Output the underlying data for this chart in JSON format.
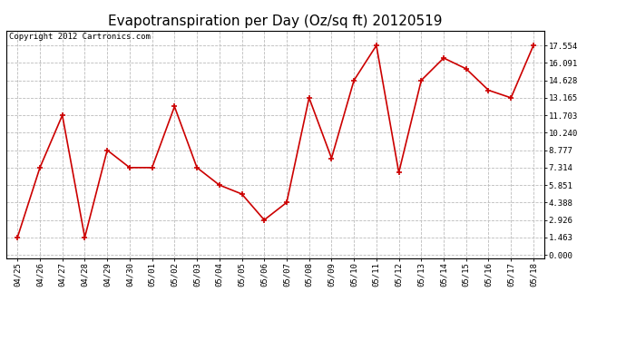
{
  "title": "Evapotranspiration per Day (Oz/sq ft) 20120519",
  "copyright": "Copyright 2012 Cartronics.com",
  "dates": [
    "04/25",
    "04/26",
    "04/27",
    "04/28",
    "04/29",
    "04/30",
    "05/01",
    "05/02",
    "05/03",
    "05/04",
    "05/05",
    "05/06",
    "05/07",
    "05/08",
    "05/09",
    "05/10",
    "05/11",
    "05/12",
    "05/13",
    "05/14",
    "05/15",
    "05/16",
    "05/17",
    "05/18"
  ],
  "values": [
    1.463,
    7.314,
    11.703,
    1.463,
    8.777,
    7.314,
    7.314,
    12.434,
    7.314,
    5.851,
    5.1,
    2.926,
    4.388,
    13.165,
    8.1,
    14.628,
    17.554,
    6.9,
    14.628,
    16.5,
    15.6,
    13.8,
    13.165,
    17.554
  ],
  "line_color": "#cc0000",
  "marker": "+",
  "marker_size": 5,
  "marker_linewidth": 1.2,
  "line_width": 1.2,
  "grid_color": "#bbbbbb",
  "grid_linestyle": "--",
  "background_color": "#ffffff",
  "plot_bg_color": "#ffffff",
  "yticks": [
    0.0,
    1.463,
    2.926,
    4.388,
    5.851,
    7.314,
    8.777,
    10.24,
    11.703,
    13.165,
    14.628,
    16.091,
    17.554
  ],
  "ylim": [
    -0.3,
    18.8
  ],
  "xlim": [
    -0.5,
    23.5
  ],
  "title_fontsize": 11,
  "tick_fontsize": 6.5,
  "copyright_fontsize": 6.5,
  "title_fontfamily": "DejaVu Sans",
  "tick_fontfamily": "DejaVu Sans Mono"
}
